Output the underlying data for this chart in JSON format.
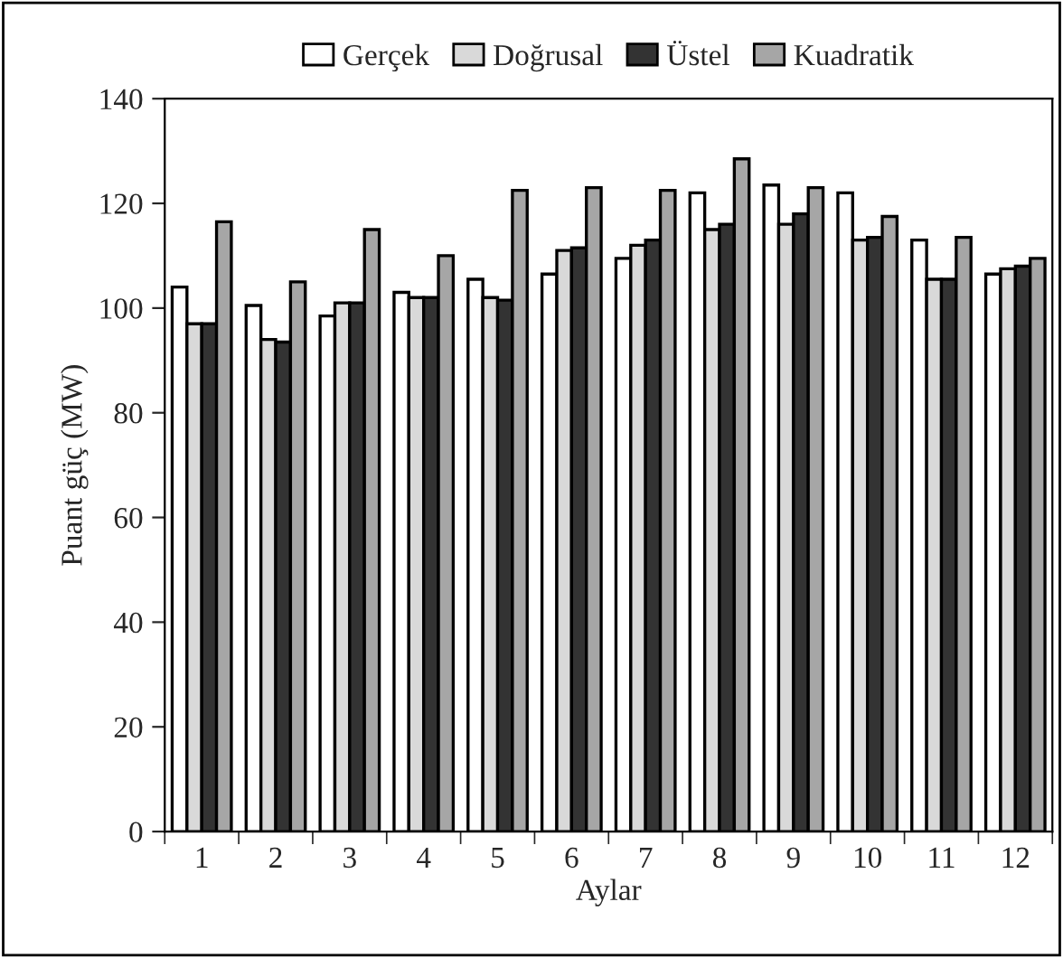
{
  "chart_data": {
    "type": "bar",
    "xlabel": "Aylar",
    "ylabel": "Puant güç (MW)",
    "categories": [
      "1",
      "2",
      "3",
      "4",
      "5",
      "6",
      "7",
      "8",
      "9",
      "10",
      "11",
      "12"
    ],
    "series": [
      {
        "name": "Gerçek",
        "color": "#ffffff",
        "values": [
          104,
          100.5,
          98.5,
          103,
          105.5,
          106.5,
          109.5,
          122,
          123.5,
          122,
          113,
          106.5
        ]
      },
      {
        "name": "Doğrusal",
        "color": "#d9d9d9",
        "values": [
          97,
          94,
          101,
          102,
          102,
          111,
          112,
          115,
          116,
          113,
          105.5,
          107.5
        ]
      },
      {
        "name": "Üstel",
        "color": "#333333",
        "values": [
          97,
          93.5,
          101,
          102,
          101.5,
          111.5,
          113,
          116,
          118,
          113.5,
          105.5,
          108
        ]
      },
      {
        "name": "Kuadratik",
        "color": "#a6a6a6",
        "values": [
          116.5,
          105,
          115,
          110,
          122.5,
          123,
          122.5,
          128.5,
          123,
          117.5,
          113.5,
          109.5
        ]
      }
    ],
    "ylim": [
      0,
      140
    ],
    "yticks": [
      0,
      20,
      40,
      60,
      80,
      100,
      120,
      140
    ],
    "grid": false,
    "legend": "top"
  }
}
